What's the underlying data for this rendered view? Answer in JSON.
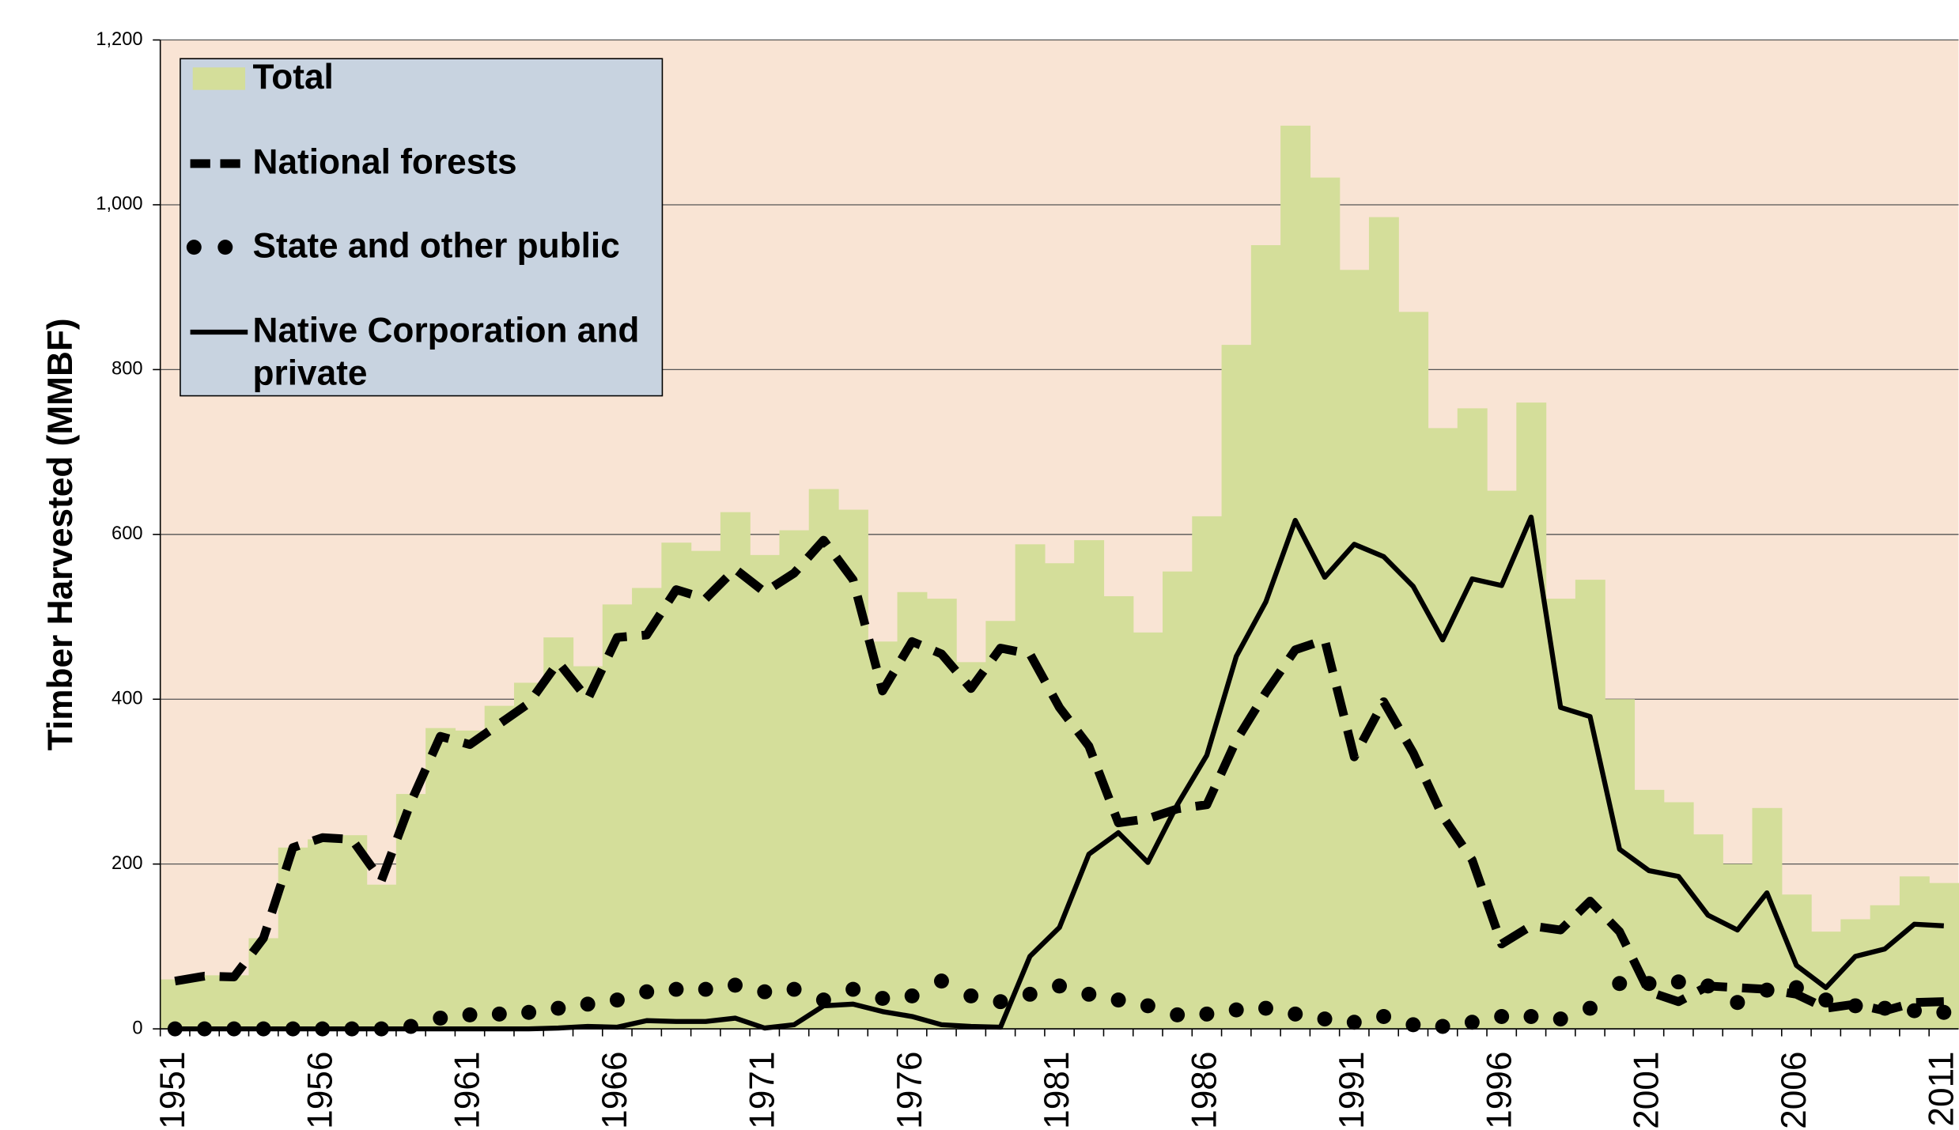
{
  "chart_data": {
    "type": "bar",
    "y_label": "Timber Harvested (MMBF)",
    "categories": [
      "1951",
      null,
      null,
      null,
      null,
      "1956",
      null,
      null,
      null,
      null,
      "1961",
      null,
      null,
      null,
      null,
      "1966",
      null,
      null,
      null,
      null,
      "1971",
      null,
      null,
      null,
      null,
      "1976",
      null,
      null,
      null,
      null,
      "1981",
      null,
      null,
      null,
      null,
      "1986",
      null,
      null,
      null,
      null,
      "1991",
      null,
      null,
      null,
      null,
      "1996",
      null,
      null,
      null,
      null,
      "2001",
      null,
      null,
      null,
      null,
      "2006",
      null,
      null,
      null,
      null,
      "2011"
    ],
    "series": [
      {
        "name": "Total",
        "color": "#d4de9a",
        "style": "bar",
        "values": [
          60,
          65,
          65,
          110,
          220,
          230,
          235,
          175,
          285,
          365,
          362,
          392,
          420,
          475,
          440,
          515,
          535,
          590,
          580,
          627,
          575,
          605,
          655,
          630,
          470,
          530,
          522,
          445,
          495,
          588,
          565,
          593,
          525,
          481,
          555,
          622,
          830,
          951,
          1096,
          1033,
          921,
          985,
          870,
          729,
          753,
          653,
          760,
          522,
          545,
          400,
          290,
          275,
          236,
          200,
          268,
          163,
          118,
          133,
          150,
          185,
          177
        ]
      },
      {
        "name": "National forests",
        "color": "#000000",
        "style": "dashed",
        "values": [
          58,
          64,
          63,
          110,
          220,
          232,
          230,
          180,
          275,
          355,
          345,
          370,
          395,
          445,
          400,
          475,
          478,
          533,
          522,
          558,
          530,
          553,
          593,
          545,
          410,
          470,
          455,
          413,
          462,
          455,
          390,
          343,
          250,
          255,
          267,
          272,
          350,
          408,
          460,
          472,
          330,
          397,
          335,
          258,
          205,
          103,
          125,
          120,
          155,
          118,
          45,
          33,
          52,
          50,
          48,
          42,
          25,
          30,
          22,
          32,
          33
        ]
      },
      {
        "name": "State and other public",
        "color": "#000000",
        "style": "dotted",
        "values": [
          0,
          0,
          0,
          0,
          0,
          0,
          0,
          0,
          3,
          13,
          17,
          18,
          20,
          25,
          30,
          35,
          45,
          48,
          48,
          53,
          45,
          48,
          35,
          48,
          37,
          40,
          58,
          40,
          33,
          42,
          52,
          42,
          35,
          28,
          17,
          18,
          23,
          25,
          18,
          12,
          8,
          15,
          5,
          3,
          8,
          15,
          15,
          12,
          25,
          55,
          55,
          57,
          52,
          32,
          47,
          50,
          35,
          28,
          25,
          22,
          20
        ]
      },
      {
        "name": "Native Corporation and private",
        "color": "#000000",
        "style": "solid",
        "values": [
          0,
          0,
          0,
          0,
          0,
          0,
          0,
          0,
          0,
          0,
          0,
          0,
          0,
          1,
          3,
          2,
          10,
          9,
          9,
          13,
          1,
          5,
          28,
          30,
          21,
          15,
          5,
          3,
          2,
          88,
          123,
          212,
          238,
          202,
          272,
          332,
          452,
          518,
          617,
          548,
          588,
          573,
          537,
          472,
          546,
          538,
          621,
          390,
          379,
          218,
          192,
          185,
          138,
          120,
          165,
          77,
          50,
          88,
          97,
          127,
          125
        ]
      }
    ],
    "ylim": [
      0,
      1200
    ],
    "yticks": [
      0,
      200,
      400,
      600,
      800,
      {
        "value": 1000,
        "label": "1,000"
      },
      {
        "value": 1200,
        "label": "1,200"
      }
    ],
    "grid": true,
    "background": "#f9e4d4",
    "legend": "upper-left",
    "legend_color": "#c8d3e0"
  }
}
